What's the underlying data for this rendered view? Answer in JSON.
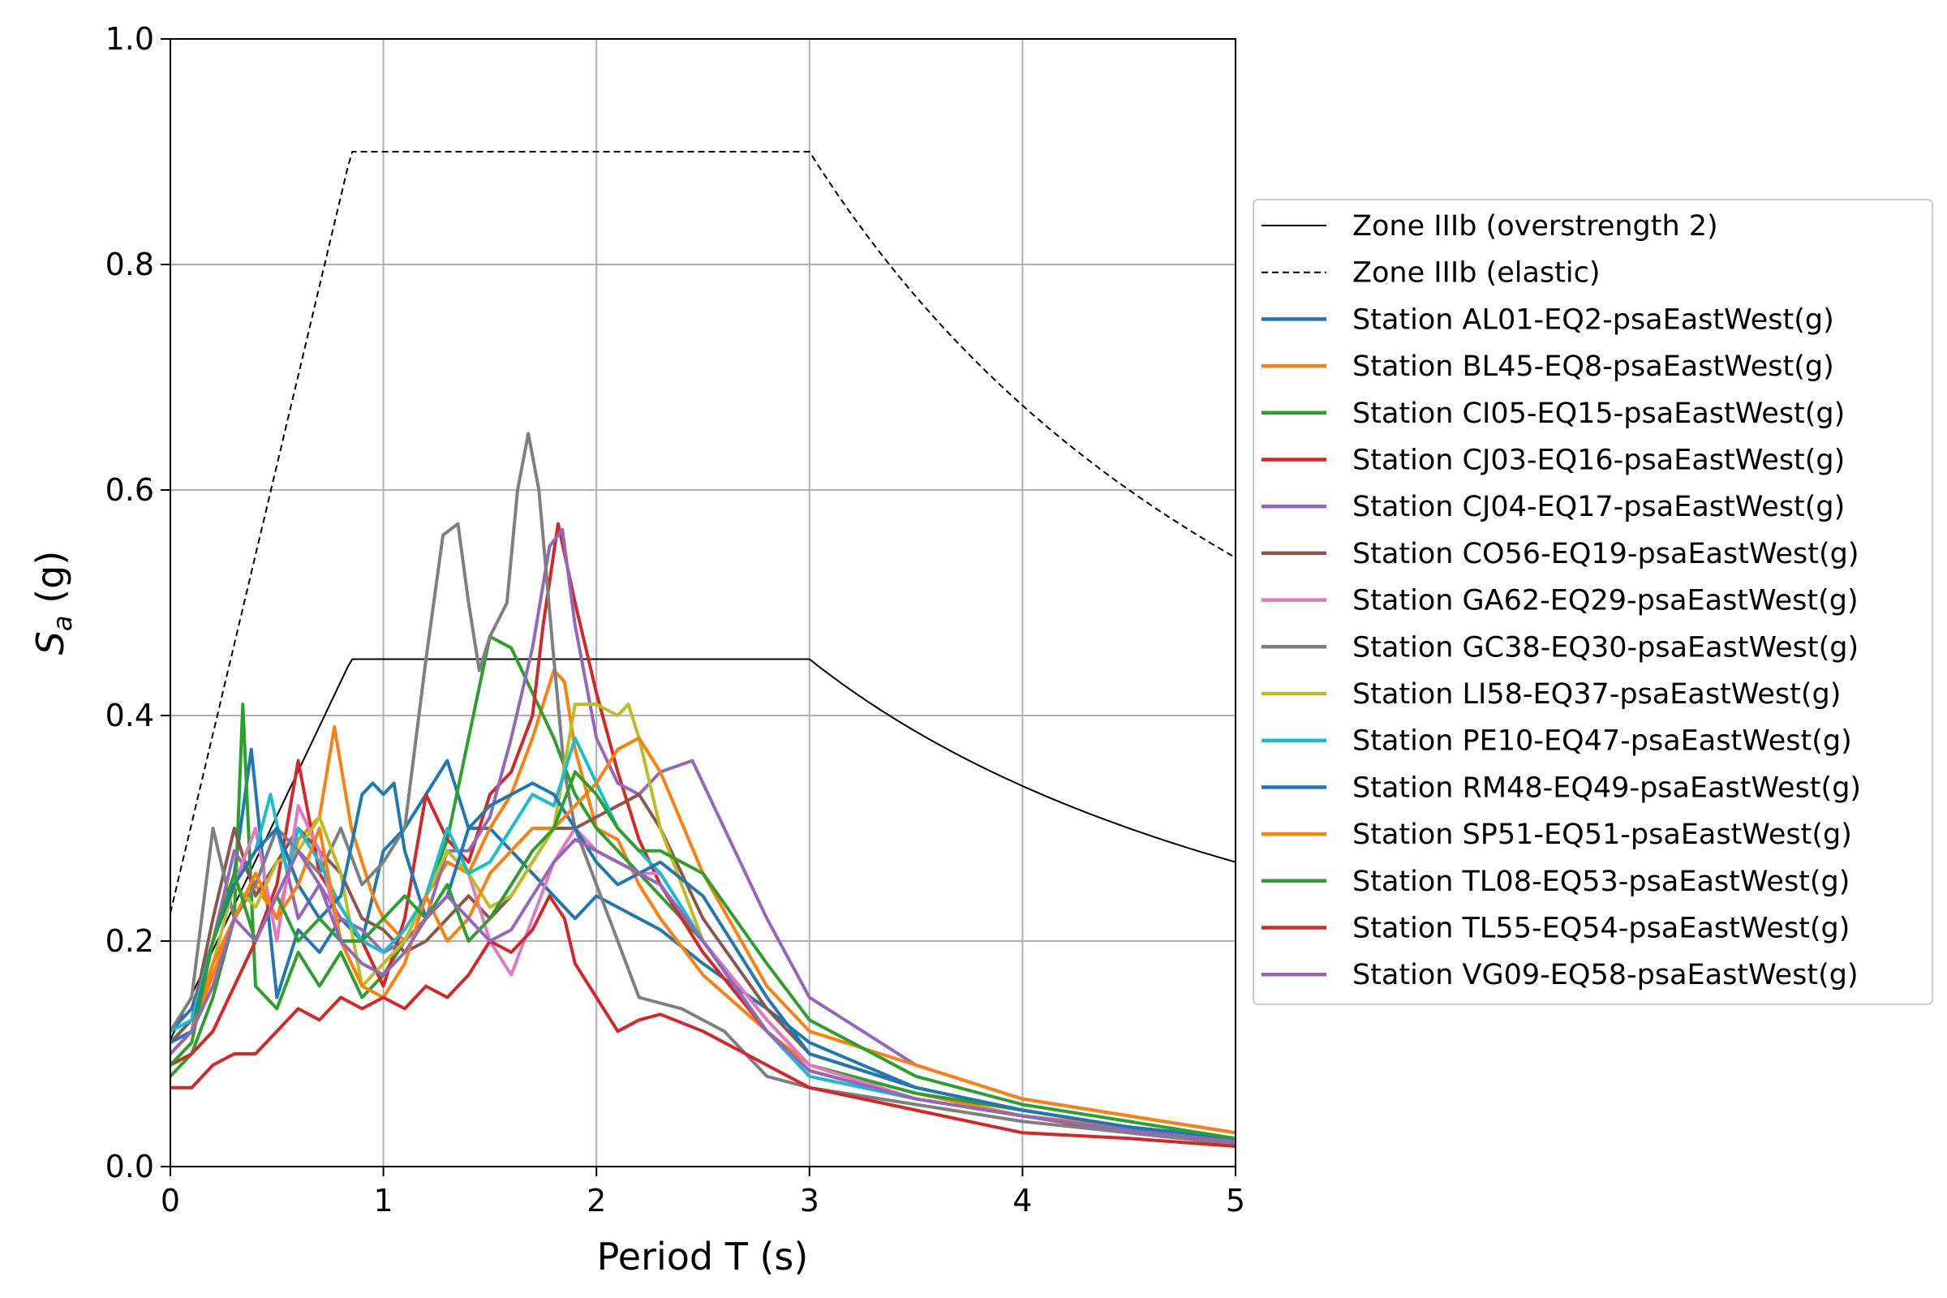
{
  "chart_data": {
    "type": "line",
    "xlabel": "Period T (s)",
    "ylabel": "S",
    "ylabel_sub": "a",
    "ylabel_unit": " (g)",
    "xlim": [
      0,
      5
    ],
    "ylim": [
      0,
      1.0
    ],
    "x_ticks": [
      0,
      1,
      2,
      3,
      4,
      5
    ],
    "x_tick_labels": [
      "0",
      "1",
      "2",
      "3",
      "4",
      "5"
    ],
    "y_ticks": [
      0,
      0.2,
      0.4,
      0.6,
      0.8,
      1.0
    ],
    "y_tick_labels": [
      "0.0",
      "0.2",
      "0.4",
      "0.6",
      "0.8",
      "1.0"
    ],
    "grid": true,
    "legend_position": "right, outside plot area",
    "design_spectra": [
      {
        "name": "Zone IIIb (overstrength 2)",
        "style": "solid",
        "color": "#000000",
        "ag": 0.1125,
        "plateau": 0.45,
        "TB": 0.85,
        "TC": 3.0,
        "TD_power": 1.0
      },
      {
        "name": "Zone IIIb (elastic)",
        "style": "dashed",
        "color": "#000000",
        "ag": 0.225,
        "plateau": 0.9,
        "TB": 0.85,
        "TC": 3.0,
        "TD_power": 1.0
      }
    ],
    "series": [
      {
        "name": "Station AL01-EQ2-psaEastWest(g)",
        "color": "#1f77b4",
        "x": [
          0,
          0.1,
          0.2,
          0.3,
          0.38,
          0.5,
          0.6,
          0.7,
          0.8,
          0.9,
          1.0,
          1.1,
          1.2,
          1.3,
          1.4,
          1.5,
          1.7,
          1.9,
          2.0,
          2.1,
          2.3,
          2.5,
          2.8,
          3.0,
          3.5,
          4.0,
          4.5,
          5.0
        ],
        "y": [
          0.12,
          0.14,
          0.2,
          0.26,
          0.37,
          0.15,
          0.21,
          0.19,
          0.22,
          0.2,
          0.28,
          0.3,
          0.33,
          0.36,
          0.3,
          0.3,
          0.26,
          0.22,
          0.24,
          0.23,
          0.21,
          0.18,
          0.14,
          0.11,
          0.07,
          0.05,
          0.035,
          0.025
        ]
      },
      {
        "name": "Station BL45-EQ8-psaEastWest(g)",
        "color": "#ff7f0e",
        "x": [
          0,
          0.1,
          0.2,
          0.3,
          0.4,
          0.5,
          0.6,
          0.7,
          0.77,
          0.85,
          0.95,
          1.0,
          1.1,
          1.2,
          1.3,
          1.4,
          1.5,
          1.6,
          1.7,
          1.8,
          1.85,
          1.9,
          2.0,
          2.1,
          2.2,
          2.3,
          2.5,
          2.8,
          3.0,
          3.5,
          4.0,
          4.5,
          5.0
        ],
        "y": [
          0.1,
          0.12,
          0.17,
          0.22,
          0.25,
          0.22,
          0.29,
          0.31,
          0.39,
          0.3,
          0.24,
          0.22,
          0.2,
          0.24,
          0.27,
          0.26,
          0.3,
          0.33,
          0.38,
          0.44,
          0.43,
          0.37,
          0.3,
          0.29,
          0.25,
          0.22,
          0.17,
          0.12,
          0.09,
          0.065,
          0.045,
          0.035,
          0.025
        ]
      },
      {
        "name": "Station CI05-EQ15-psaEastWest(g)",
        "color": "#2ca02c",
        "x": [
          0,
          0.1,
          0.2,
          0.3,
          0.34,
          0.4,
          0.5,
          0.6,
          0.7,
          0.8,
          0.9,
          1.0,
          1.1,
          1.2,
          1.3,
          1.4,
          1.5,
          1.6,
          1.7,
          1.8,
          1.9,
          2.0,
          2.1,
          2.3,
          2.5,
          2.8,
          3.0,
          3.5,
          4.0,
          4.5,
          5.0
        ],
        "y": [
          0.08,
          0.1,
          0.15,
          0.22,
          0.41,
          0.16,
          0.14,
          0.19,
          0.16,
          0.19,
          0.15,
          0.17,
          0.2,
          0.24,
          0.29,
          0.38,
          0.47,
          0.46,
          0.42,
          0.38,
          0.33,
          0.3,
          0.28,
          0.24,
          0.2,
          0.13,
          0.09,
          0.065,
          0.05,
          0.035,
          0.022
        ]
      },
      {
        "name": "Station CJ03-EQ16-psaEastWest(g)",
        "color": "#d62728",
        "x": [
          0,
          0.1,
          0.2,
          0.3,
          0.4,
          0.5,
          0.6,
          0.7,
          0.8,
          0.9,
          1.0,
          1.1,
          1.2,
          1.3,
          1.4,
          1.5,
          1.6,
          1.7,
          1.75,
          1.82,
          1.9,
          2.0,
          2.1,
          2.2,
          2.3,
          2.5,
          2.8,
          3.0,
          3.5,
          4.0,
          4.5,
          5.0
        ],
        "y": [
          0.09,
          0.1,
          0.12,
          0.16,
          0.2,
          0.25,
          0.36,
          0.26,
          0.23,
          0.2,
          0.16,
          0.22,
          0.33,
          0.29,
          0.27,
          0.33,
          0.35,
          0.4,
          0.48,
          0.57,
          0.5,
          0.42,
          0.35,
          0.29,
          0.25,
          0.19,
          0.12,
          0.085,
          0.06,
          0.045,
          0.03,
          0.02
        ]
      },
      {
        "name": "Station CJ04-EQ17-psaEastWest(g)",
        "color": "#9467bd",
        "x": [
          0,
          0.1,
          0.2,
          0.3,
          0.4,
          0.5,
          0.6,
          0.7,
          0.8,
          0.9,
          1.0,
          1.1,
          1.2,
          1.3,
          1.4,
          1.5,
          1.6,
          1.7,
          1.78,
          1.84,
          1.9,
          2.0,
          2.1,
          2.2,
          2.3,
          2.45,
          2.6,
          2.8,
          3.0,
          3.5,
          4.0,
          4.5,
          5.0
        ],
        "y": [
          0.1,
          0.12,
          0.2,
          0.28,
          0.25,
          0.3,
          0.22,
          0.25,
          0.22,
          0.21,
          0.19,
          0.2,
          0.22,
          0.28,
          0.28,
          0.31,
          0.38,
          0.46,
          0.55,
          0.565,
          0.48,
          0.38,
          0.34,
          0.33,
          0.35,
          0.36,
          0.3,
          0.22,
          0.15,
          0.09,
          0.06,
          0.045,
          0.03
        ]
      },
      {
        "name": "Station CO56-EQ19-psaEastWest(g)",
        "color": "#8c564b",
        "x": [
          0,
          0.1,
          0.2,
          0.3,
          0.4,
          0.5,
          0.6,
          0.7,
          0.8,
          0.9,
          1.0,
          1.1,
          1.2,
          1.3,
          1.4,
          1.5,
          1.6,
          1.7,
          1.8,
          1.9,
          2.0,
          2.1,
          2.2,
          2.3,
          2.5,
          2.8,
          3.0,
          3.5,
          4.0,
          4.5,
          5.0
        ],
        "y": [
          0.11,
          0.13,
          0.22,
          0.3,
          0.24,
          0.27,
          0.3,
          0.28,
          0.26,
          0.22,
          0.21,
          0.19,
          0.2,
          0.22,
          0.24,
          0.22,
          0.24,
          0.27,
          0.3,
          0.3,
          0.31,
          0.32,
          0.33,
          0.3,
          0.22,
          0.14,
          0.1,
          0.07,
          0.05,
          0.035,
          0.025
        ]
      },
      {
        "name": "Station GA62-EQ29-psaEastWest(g)",
        "color": "#e377c2",
        "x": [
          0,
          0.1,
          0.2,
          0.3,
          0.4,
          0.5,
          0.6,
          0.7,
          0.8,
          0.9,
          1.0,
          1.1,
          1.2,
          1.3,
          1.4,
          1.5,
          1.6,
          1.7,
          1.8,
          1.9,
          2.0,
          2.1,
          2.2,
          2.3,
          2.5,
          2.8,
          3.0,
          3.5,
          4.0,
          4.5,
          5.0
        ],
        "y": [
          0.1,
          0.12,
          0.2,
          0.25,
          0.3,
          0.2,
          0.32,
          0.28,
          0.2,
          0.16,
          0.18,
          0.2,
          0.24,
          0.28,
          0.26,
          0.2,
          0.17,
          0.22,
          0.27,
          0.3,
          0.28,
          0.27,
          0.26,
          0.26,
          0.2,
          0.13,
          0.09,
          0.06,
          0.045,
          0.032,
          0.022
        ]
      },
      {
        "name": "Station GC38-EQ30-psaEastWest(g)",
        "color": "#7f7f7f",
        "x": [
          0,
          0.1,
          0.2,
          0.3,
          0.4,
          0.5,
          0.6,
          0.7,
          0.8,
          0.9,
          1.0,
          1.1,
          1.2,
          1.28,
          1.35,
          1.4,
          1.45,
          1.5,
          1.58,
          1.63,
          1.68,
          1.73,
          1.8,
          1.85,
          1.9,
          2.0,
          2.1,
          2.2,
          2.4,
          2.6,
          2.8,
          3.0,
          3.5,
          4.0,
          4.5,
          5.0
        ],
        "y": [
          0.12,
          0.15,
          0.3,
          0.22,
          0.25,
          0.3,
          0.28,
          0.26,
          0.3,
          0.25,
          0.27,
          0.3,
          0.45,
          0.56,
          0.57,
          0.5,
          0.44,
          0.47,
          0.5,
          0.6,
          0.65,
          0.6,
          0.45,
          0.35,
          0.3,
          0.25,
          0.2,
          0.15,
          0.14,
          0.12,
          0.08,
          0.07,
          0.055,
          0.04,
          0.03,
          0.02
        ]
      },
      {
        "name": "Station LI58-EQ37-psaEastWest(g)",
        "color": "#bcbd22",
        "x": [
          0,
          0.1,
          0.2,
          0.3,
          0.4,
          0.5,
          0.6,
          0.7,
          0.8,
          0.9,
          1.0,
          1.1,
          1.2,
          1.3,
          1.4,
          1.5,
          1.6,
          1.7,
          1.8,
          1.9,
          2.0,
          2.1,
          2.15,
          2.2,
          2.3,
          2.5,
          2.8,
          3.0,
          3.5,
          4.0,
          4.5,
          5.0
        ],
        "y": [
          0.1,
          0.12,
          0.18,
          0.25,
          0.23,
          0.27,
          0.28,
          0.31,
          0.26,
          0.16,
          0.18,
          0.2,
          0.24,
          0.28,
          0.26,
          0.23,
          0.24,
          0.27,
          0.3,
          0.41,
          0.41,
          0.4,
          0.41,
          0.38,
          0.3,
          0.2,
          0.12,
          0.08,
          0.06,
          0.045,
          0.032,
          0.022
        ]
      },
      {
        "name": "Station PE10-EQ47-psaEastWest(g)",
        "color": "#17becf",
        "x": [
          0,
          0.1,
          0.2,
          0.3,
          0.4,
          0.47,
          0.55,
          0.6,
          0.7,
          0.8,
          0.9,
          1.0,
          1.1,
          1.2,
          1.3,
          1.4,
          1.5,
          1.6,
          1.7,
          1.8,
          1.9,
          2.0,
          2.1,
          2.3,
          2.5,
          2.8,
          3.0,
          3.5,
          4.0,
          4.5,
          5.0
        ],
        "y": [
          0.12,
          0.13,
          0.2,
          0.25,
          0.28,
          0.33,
          0.26,
          0.3,
          0.27,
          0.23,
          0.2,
          0.19,
          0.21,
          0.24,
          0.3,
          0.26,
          0.27,
          0.3,
          0.33,
          0.32,
          0.38,
          0.34,
          0.3,
          0.26,
          0.2,
          0.12,
          0.08,
          0.06,
          0.045,
          0.032,
          0.022
        ]
      },
      {
        "name": "Station RM48-EQ49-psaEastWest(g)",
        "color": "#1f77b4",
        "x": [
          0,
          0.1,
          0.2,
          0.3,
          0.4,
          0.5,
          0.6,
          0.7,
          0.8,
          0.9,
          0.95,
          1.0,
          1.05,
          1.1,
          1.2,
          1.3,
          1.4,
          1.5,
          1.6,
          1.7,
          1.8,
          1.9,
          2.0,
          2.1,
          2.2,
          2.3,
          2.5,
          2.8,
          3.0,
          3.5,
          4.0,
          4.5,
          5.0
        ],
        "y": [
          0.11,
          0.12,
          0.2,
          0.25,
          0.28,
          0.3,
          0.25,
          0.22,
          0.24,
          0.33,
          0.34,
          0.33,
          0.34,
          0.28,
          0.22,
          0.24,
          0.3,
          0.32,
          0.33,
          0.34,
          0.33,
          0.3,
          0.27,
          0.25,
          0.26,
          0.27,
          0.24,
          0.15,
          0.1,
          0.07,
          0.05,
          0.035,
          0.025
        ]
      },
      {
        "name": "Station SP51-EQ51-psaEastWest(g)",
        "color": "#ff7f0e",
        "x": [
          0,
          0.1,
          0.2,
          0.3,
          0.4,
          0.5,
          0.6,
          0.7,
          0.8,
          0.9,
          1.0,
          1.1,
          1.2,
          1.3,
          1.4,
          1.5,
          1.6,
          1.7,
          1.8,
          1.9,
          2.0,
          2.1,
          2.2,
          2.3,
          2.5,
          2.8,
          3.0,
          3.5,
          4.0,
          4.5,
          5.0
        ],
        "y": [
          0.1,
          0.12,
          0.18,
          0.22,
          0.26,
          0.22,
          0.25,
          0.3,
          0.2,
          0.16,
          0.15,
          0.18,
          0.24,
          0.2,
          0.22,
          0.26,
          0.28,
          0.3,
          0.3,
          0.32,
          0.34,
          0.37,
          0.38,
          0.35,
          0.26,
          0.16,
          0.12,
          0.09,
          0.06,
          0.045,
          0.03
        ]
      },
      {
        "name": "Station TL08-EQ53-psaEastWest(g)",
        "color": "#2ca02c",
        "x": [
          0,
          0.1,
          0.2,
          0.3,
          0.4,
          0.5,
          0.6,
          0.7,
          0.8,
          0.9,
          1.0,
          1.1,
          1.2,
          1.3,
          1.4,
          1.5,
          1.6,
          1.7,
          1.8,
          1.9,
          2.0,
          2.1,
          2.2,
          2.3,
          2.5,
          2.8,
          3.0,
          3.5,
          4.0,
          4.5,
          5.0
        ],
        "y": [
          0.09,
          0.11,
          0.2,
          0.26,
          0.2,
          0.24,
          0.2,
          0.22,
          0.2,
          0.2,
          0.22,
          0.24,
          0.22,
          0.25,
          0.2,
          0.22,
          0.25,
          0.28,
          0.3,
          0.35,
          0.33,
          0.3,
          0.28,
          0.28,
          0.26,
          0.18,
          0.13,
          0.08,
          0.055,
          0.04,
          0.025
        ]
      },
      {
        "name": "Station TL55-EQ54-psaEastWest(g)",
        "color": "#d62728",
        "x": [
          0,
          0.1,
          0.2,
          0.3,
          0.4,
          0.5,
          0.6,
          0.7,
          0.8,
          0.9,
          1.0,
          1.1,
          1.2,
          1.3,
          1.4,
          1.5,
          1.6,
          1.7,
          1.78,
          1.85,
          1.9,
          2.0,
          2.1,
          2.2,
          2.3,
          2.5,
          2.8,
          3.0,
          3.5,
          4.0,
          4.5,
          5.0
        ],
        "y": [
          0.07,
          0.07,
          0.09,
          0.1,
          0.1,
          0.12,
          0.14,
          0.13,
          0.15,
          0.14,
          0.15,
          0.14,
          0.16,
          0.15,
          0.17,
          0.2,
          0.19,
          0.21,
          0.24,
          0.22,
          0.18,
          0.15,
          0.12,
          0.13,
          0.135,
          0.12,
          0.09,
          0.07,
          0.05,
          0.03,
          0.025,
          0.018
        ]
      },
      {
        "name": "Station VG09-EQ58-psaEastWest(g)",
        "color": "#9467bd",
        "x": [
          0,
          0.1,
          0.2,
          0.3,
          0.4,
          0.5,
          0.6,
          0.7,
          0.8,
          0.9,
          1.0,
          1.1,
          1.2,
          1.3,
          1.4,
          1.5,
          1.6,
          1.7,
          1.8,
          1.9,
          2.0,
          2.1,
          2.3,
          2.5,
          2.8,
          3.0,
          3.5,
          4.0,
          4.5,
          5.0
        ],
        "y": [
          0.1,
          0.12,
          0.16,
          0.22,
          0.2,
          0.24,
          0.28,
          0.25,
          0.2,
          0.18,
          0.17,
          0.19,
          0.22,
          0.24,
          0.22,
          0.2,
          0.21,
          0.24,
          0.27,
          0.29,
          0.28,
          0.27,
          0.25,
          0.2,
          0.12,
          0.085,
          0.06,
          0.045,
          0.032,
          0.022
        ]
      }
    ]
  }
}
